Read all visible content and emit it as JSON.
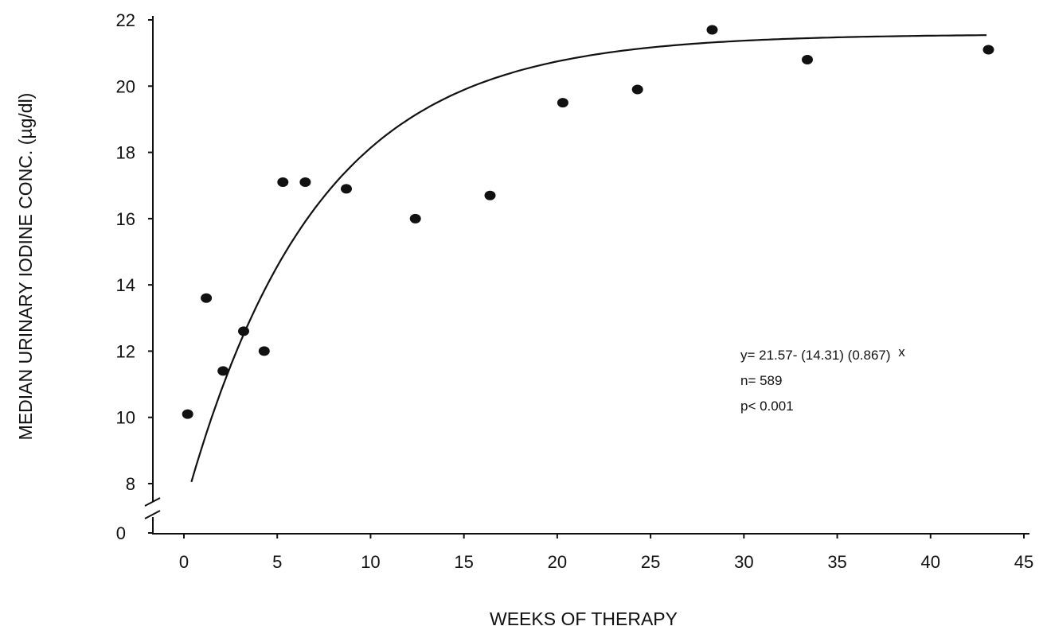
{
  "chart_data": {
    "type": "scatter",
    "title": "",
    "xlabel": "WEEKS OF THERAPY",
    "ylabel": "MEDIAN URINARY IODINE CONC. (µg/dl)",
    "xlim": [
      0,
      45
    ],
    "ylim": [
      8,
      22
    ],
    "x_ticks": [
      "0",
      "5",
      "10",
      "15",
      "20",
      "25",
      "30",
      "35",
      "40",
      "45"
    ],
    "y_ticks": [
      "8",
      "10",
      "12",
      "14",
      "16",
      "18",
      "20",
      "22"
    ],
    "y_axis_break": true,
    "y_break_label": "0",
    "grid": false,
    "series": [
      {
        "type": "scatter",
        "x": [
          0.2,
          1.2,
          2.1,
          3.2,
          4.3,
          5.3,
          6.5,
          8.7,
          12.4,
          16.4,
          20.3,
          24.3,
          28.3,
          33.4,
          43.1
        ],
        "y": [
          10.1,
          13.6,
          11.4,
          12.6,
          12.0,
          17.1,
          17.1,
          16.9,
          16.0,
          16.7,
          19.5,
          19.9,
          21.7,
          20.8,
          21.1
        ]
      },
      {
        "type": "line",
        "fit": {
          "a": 21.57,
          "b": 14.31,
          "c": 0.867
        },
        "x_range": [
          0.4,
          43
        ]
      }
    ],
    "annotations": {
      "equation_main": "y= 21.57- (14.31) (0.867)",
      "equation_exponent": "x",
      "n_label": "n= 589",
      "p_label": "p< 0.001"
    }
  }
}
